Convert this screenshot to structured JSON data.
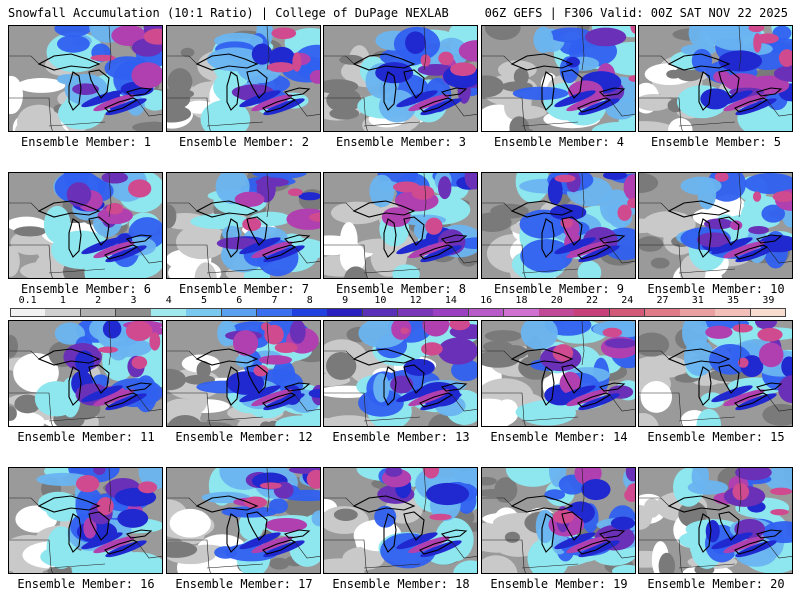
{
  "header": {
    "title": "Snowfall Accumulation (10:1 Ratio) | College of DuPage NEXLAB",
    "run_info": "06Z GEFS | F306 Valid: 00Z SAT NOV 22 2025"
  },
  "panels": [
    {
      "label": "Ensemble Member: 1",
      "intensity": 0.45
    },
    {
      "label": "Ensemble Member: 2",
      "intensity": 0.55
    },
    {
      "label": "Ensemble Member: 3",
      "intensity": 0.6
    },
    {
      "label": "Ensemble Member: 4",
      "intensity": 0.4
    },
    {
      "label": "Ensemble Member: 5",
      "intensity": 0.75
    },
    {
      "label": "Ensemble Member: 6",
      "intensity": 0.45
    },
    {
      "label": "Ensemble Member: 7",
      "intensity": 0.5
    },
    {
      "label": "Ensemble Member: 8",
      "intensity": 0.55
    },
    {
      "label": "Ensemble Member: 9",
      "intensity": 0.7
    },
    {
      "label": "Ensemble Member: 10",
      "intensity": 0.5
    },
    {
      "label": "Ensemble Member: 11",
      "intensity": 0.7
    },
    {
      "label": "Ensemble Member: 12",
      "intensity": 0.75
    },
    {
      "label": "Ensemble Member: 13",
      "intensity": 0.5
    },
    {
      "label": "Ensemble Member: 14",
      "intensity": 0.45
    },
    {
      "label": "Ensemble Member: 15",
      "intensity": 0.55
    },
    {
      "label": "Ensemble Member: 16",
      "intensity": 0.6
    },
    {
      "label": "Ensemble Member: 17",
      "intensity": 0.55
    },
    {
      "label": "Ensemble Member: 18",
      "intensity": 0.3
    },
    {
      "label": "Ensemble Member: 19",
      "intensity": 0.6
    },
    {
      "label": "Ensemble Member: 20",
      "intensity": 0.55
    }
  ],
  "colorbar": {
    "labels": [
      "0.1",
      "1",
      "2",
      "3",
      "4",
      "5",
      "6",
      "7",
      "8",
      "9",
      "10",
      "12",
      "14",
      "16",
      "18",
      "20",
      "22",
      "24",
      "27",
      "31",
      "35",
      "39"
    ],
    "colors": [
      "#f2f2f2",
      "#d0d0d0",
      "#b0b0b0",
      "#8e8e8e",
      "#9ee8ee",
      "#78c8f0",
      "#5aa0f0",
      "#3a70f0",
      "#2040e0",
      "#2a20c0",
      "#5a30b8",
      "#7a38b8",
      "#9a40c0",
      "#b85ac8",
      "#d070d0",
      "#c04a98",
      "#c8407a",
      "#d25a78",
      "#e07a88",
      "#eaa0a0",
      "#f2c0b8",
      "#f8dcd0"
    ]
  },
  "palette": {
    "gray_light": "#c9c9c9",
    "gray_mid": "#9a9a9a",
    "gray_dark": "#7a7a7a",
    "cyan": "#8ee6ee",
    "light_blue": "#6ab4f0",
    "blue": "#3060f0",
    "deep_blue": "#2028d0",
    "purple": "#6a30b8",
    "magenta": "#b040b0",
    "pink": "#d04a90",
    "white": "#ffffff"
  }
}
